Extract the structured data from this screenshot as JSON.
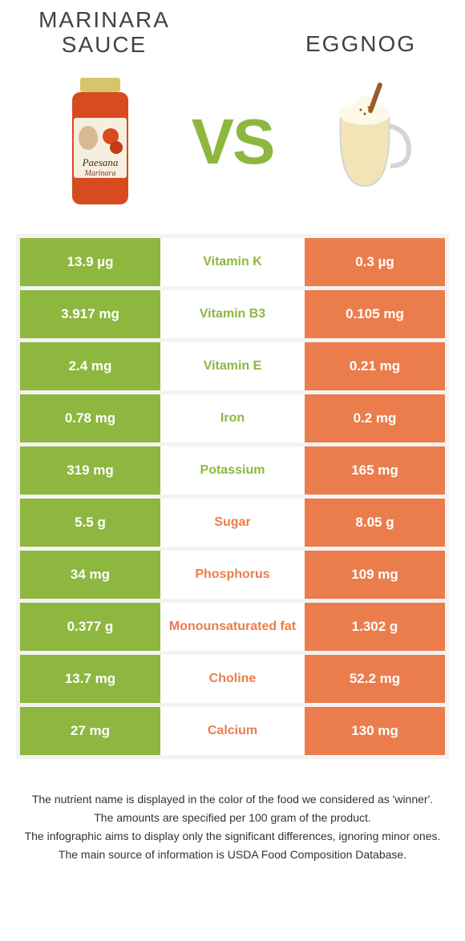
{
  "colors": {
    "left": "#8eb73f",
    "right": "#eb7d4c",
    "bg": "#ffffff",
    "row_gap": "#f3f3f3",
    "text_dark": "#424242",
    "footer_text": "#333333"
  },
  "header": {
    "left_title_line1": "MARINARA",
    "left_title_line2": "SAUCE",
    "right_title": "EGGNOG",
    "vs": "VS"
  },
  "rows": [
    {
      "left": "13.9 µg",
      "label": "Vitamin K",
      "right": "0.3 µg",
      "winner": "left"
    },
    {
      "left": "3.917 mg",
      "label": "Vitamin B3",
      "right": "0.105 mg",
      "winner": "left"
    },
    {
      "left": "2.4 mg",
      "label": "Vitamin E",
      "right": "0.21 mg",
      "winner": "left"
    },
    {
      "left": "0.78 mg",
      "label": "Iron",
      "right": "0.2 mg",
      "winner": "left"
    },
    {
      "left": "319 mg",
      "label": "Potassium",
      "right": "165 mg",
      "winner": "left"
    },
    {
      "left": "5.5 g",
      "label": "Sugar",
      "right": "8.05 g",
      "winner": "right"
    },
    {
      "left": "34 mg",
      "label": "Phosphorus",
      "right": "109 mg",
      "winner": "right"
    },
    {
      "left": "0.377 g",
      "label": "Monounsaturated fat",
      "right": "1.302 g",
      "winner": "right"
    },
    {
      "left": "13.7 mg",
      "label": "Choline",
      "right": "52.2 mg",
      "winner": "right"
    },
    {
      "left": "27 mg",
      "label": "Calcium",
      "right": "130 mg",
      "winner": "right"
    }
  ],
  "footer": {
    "line1": "The nutrient name is displayed in the color of the food we considered as 'winner'.",
    "line2": "The amounts are specified per 100 gram of the product.",
    "line3": "The infographic aims to display only the significant differences, ignoring minor ones.",
    "line4": "The main source of information is USDA Food Composition Database."
  }
}
